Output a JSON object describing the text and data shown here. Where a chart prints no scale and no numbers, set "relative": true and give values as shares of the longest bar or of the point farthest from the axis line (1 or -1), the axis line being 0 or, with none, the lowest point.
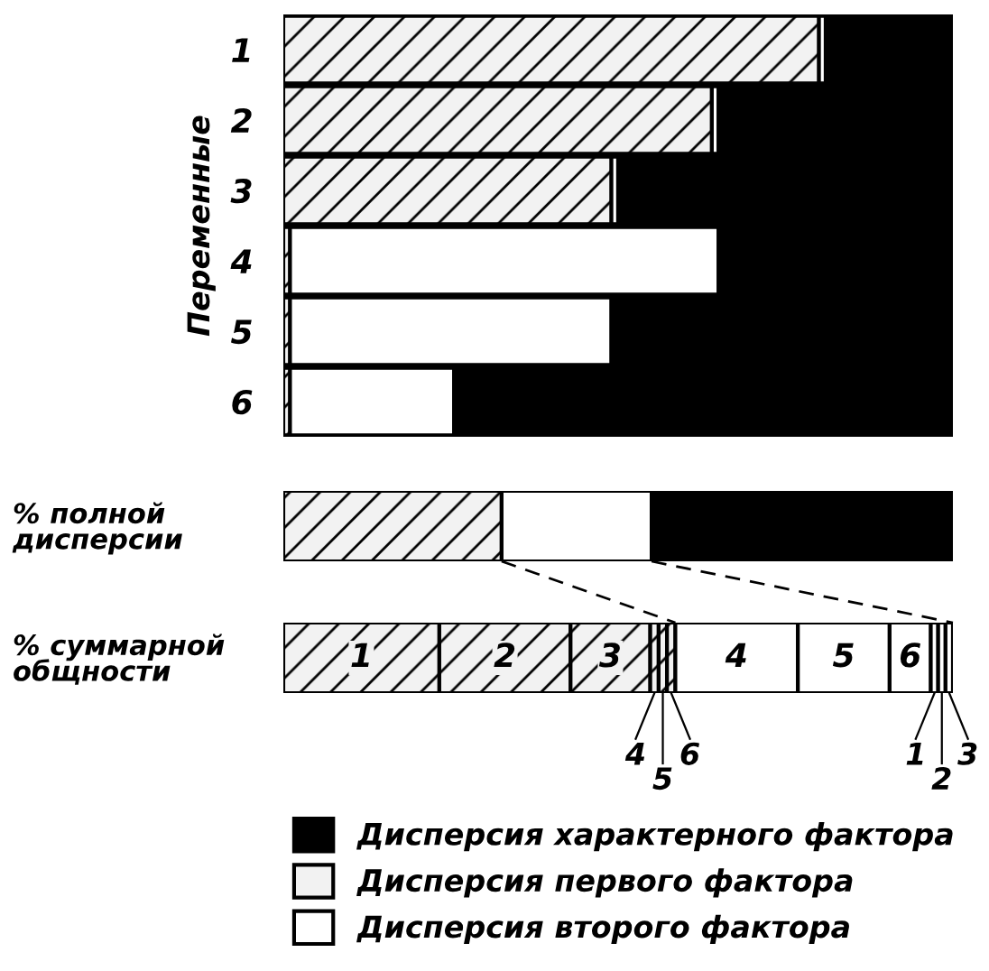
{
  "chart_data": [
    {
      "type": "bar",
      "orientation": "horizontal",
      "stacked": true,
      "relative": true,
      "ylabel": "Переменные",
      "legend": "bottom",
      "categories": [
        "1",
        "2",
        "3",
        "4",
        "5",
        "6"
      ],
      "series": [
        {
          "name": "Дисперсия первого фактора",
          "color": "#f2f2f2",
          "values": [
            0.8,
            0.64,
            0.49,
            0.01,
            0.01,
            0.01
          ]
        },
        {
          "name": "Дисперсия второго фактора",
          "color": "#ffffff",
          "values": [
            0.01,
            0.01,
            0.01,
            0.64,
            0.48,
            0.245
          ]
        },
        {
          "name": "Дисперсия характерного фактора",
          "color": "#000000",
          "values": [
            0.19,
            0.35,
            0.5,
            0.35,
            0.51,
            0.745
          ]
        }
      ]
    },
    {
      "type": "bar",
      "orientation": "horizontal",
      "stacked": true,
      "relative": true,
      "categories": [
        "% полной\nдисперсии"
      ],
      "series": [
        {
          "color": "#f2f2f2",
          "values": [
            0.326
          ]
        },
        {
          "color": "#ffffff",
          "values": [
            0.224
          ]
        },
        {
          "color": "#000000",
          "values": [
            0.45
          ]
        }
      ]
    },
    {
      "type": "bar",
      "orientation": "horizontal",
      "stacked": true,
      "relative": true,
      "categories": [
        "% суммарной\nобщности"
      ],
      "annotations": [
        "1",
        "2",
        "3",
        "4",
        "5",
        "6",
        "4",
        "5",
        "6",
        "1",
        "2",
        "3"
      ],
      "series": [
        {
          "color": "#f2f2f2",
          "values": [
            0.233
          ]
        },
        {
          "color": "#f2f2f2",
          "values": [
            0.196
          ]
        },
        {
          "color": "#f2f2f2",
          "values": [
            0.119
          ]
        },
        {
          "color": "#f2f2f2",
          "values": [
            0.0125
          ]
        },
        {
          "color": "#f2f2f2",
          "values": [
            0.0125
          ]
        },
        {
          "color": "#f2f2f2",
          "values": [
            0.0125
          ]
        },
        {
          "color": "#ffffff",
          "values": [
            0.183
          ]
        },
        {
          "color": "#ffffff",
          "values": [
            0.137
          ]
        },
        {
          "color": "#ffffff",
          "values": [
            0.0615
          ]
        },
        {
          "color": "#ffffff",
          "values": [
            0.011
          ]
        },
        {
          "color": "#ffffff",
          "values": [
            0.011
          ]
        },
        {
          "color": "#ffffff",
          "values": [
            0.011
          ]
        }
      ]
    }
  ]
}
